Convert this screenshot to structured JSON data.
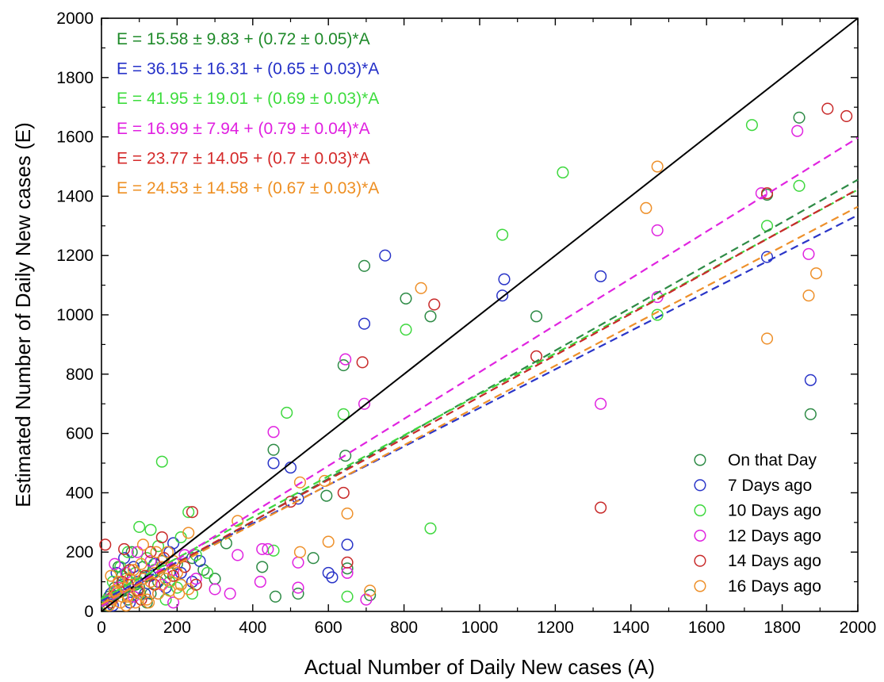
{
  "chart_data": {
    "type": "scatter",
    "xlabel": "Actual Number of Daily New cases (A)",
    "ylabel": "Estimated Number of Daily New cases (E)",
    "xlim": [
      0,
      2000
    ],
    "ylim": [
      0,
      2000
    ],
    "x_ticks": [
      "0",
      "200",
      "400",
      "600",
      "800",
      "1000",
      "1200",
      "1400",
      "1600",
      "1800",
      "2000"
    ],
    "y_ticks": [
      "0",
      "200",
      "400",
      "600",
      "800",
      "1000",
      "1200",
      "1400",
      "1600",
      "1800",
      "2000"
    ],
    "grid": false,
    "legend_position": "bottom-right",
    "identity_line": {
      "from": [
        0,
        0
      ],
      "to": [
        2000,
        2000
      ],
      "color": "#000000"
    },
    "equations": [
      {
        "text": "E = 15.58 ± 9.83 + (0.72 ± 0.05)*A",
        "color": "#1f8a2a"
      },
      {
        "text": "E = 36.15 ± 16.31 + (0.65 ± 0.03)*A",
        "color": "#2430c8"
      },
      {
        "text": "E = 41.95 ± 19.01 + (0.69 ± 0.03)*A",
        "color": "#3ddc3d"
      },
      {
        "text": "E = 16.99 ± 7.94 + (0.79 ± 0.04)*A",
        "color": "#e020e0"
      },
      {
        "text": "E = 23.77 ± 14.05 + (0.7 ± 0.03)*A",
        "color": "#d42a2a"
      },
      {
        "text": "E = 24.53 ± 14.58 + (0.67 ± 0.03)*A",
        "color": "#ee8f22"
      }
    ],
    "series": [
      {
        "name": "On that Day",
        "color": "#2e8b46",
        "fit": {
          "intercept": 15.58,
          "slope": 0.72
        },
        "points": [
          [
            1845,
            1665
          ],
          [
            1760,
            1405
          ],
          [
            1875,
            665
          ],
          [
            1150,
            995
          ],
          [
            870,
            995
          ],
          [
            805,
            1055
          ],
          [
            695,
            1165
          ],
          [
            640,
            830
          ],
          [
            645,
            525
          ],
          [
            595,
            390
          ],
          [
            455,
            545
          ],
          [
            520,
            60
          ],
          [
            460,
            50
          ],
          [
            425,
            150
          ],
          [
            560,
            180
          ],
          [
            650,
            145
          ],
          [
            710,
            55
          ],
          [
            20,
            50
          ],
          [
            35,
            80
          ],
          [
            55,
            120
          ],
          [
            70,
            40
          ],
          [
            90,
            90
          ],
          [
            110,
            150
          ],
          [
            130,
            60
          ],
          [
            150,
            100
          ],
          [
            180,
            130
          ],
          [
            210,
            90
          ],
          [
            240,
            180
          ],
          [
            270,
            140
          ],
          [
            300,
            110
          ],
          [
            330,
            230
          ],
          [
            80,
            200
          ],
          [
            120,
            30
          ],
          [
            160,
            170
          ],
          [
            60,
            70
          ],
          [
            15,
            20
          ],
          [
            45,
            150
          ],
          [
            100,
            80
          ],
          [
            200,
            160
          ]
        ]
      },
      {
        "name": "7 Days ago",
        "color": "#2a35c8",
        "fit": {
          "intercept": 36.15,
          "slope": 0.65
        },
        "points": [
          [
            750,
            1200
          ],
          [
            695,
            970
          ],
          [
            1065,
            1120
          ],
          [
            1060,
            1065
          ],
          [
            1320,
            1130
          ],
          [
            1760,
            1195
          ],
          [
            1875,
            780
          ],
          [
            500,
            485
          ],
          [
            455,
            500
          ],
          [
            650,
            225
          ],
          [
            610,
            115
          ],
          [
            600,
            130
          ],
          [
            520,
            380
          ],
          [
            190,
            230
          ],
          [
            25,
            60
          ],
          [
            40,
            130
          ],
          [
            60,
            180
          ],
          [
            75,
            30
          ],
          [
            95,
            100
          ],
          [
            115,
            60
          ],
          [
            140,
            160
          ],
          [
            170,
            80
          ],
          [
            210,
            130
          ],
          [
            240,
            100
          ],
          [
            30,
            20
          ],
          [
            55,
            90
          ],
          [
            85,
            150
          ],
          [
            130,
            120
          ],
          [
            180,
            200
          ],
          [
            260,
            170
          ]
        ]
      },
      {
        "name": "10 Days ago",
        "color": "#3fd83f",
        "fit": {
          "intercept": 41.95,
          "slope": 0.69
        },
        "points": [
          [
            1720,
            1640
          ],
          [
            1845,
            1435
          ],
          [
            1760,
            1300
          ],
          [
            1470,
            1000
          ],
          [
            1220,
            1480
          ],
          [
            1060,
            1270
          ],
          [
            805,
            950
          ],
          [
            640,
            665
          ],
          [
            490,
            670
          ],
          [
            870,
            280
          ],
          [
            650,
            50
          ],
          [
            455,
            205
          ],
          [
            160,
            505
          ],
          [
            100,
            285
          ],
          [
            130,
            275
          ],
          [
            230,
            335
          ],
          [
            30,
            100
          ],
          [
            50,
            150
          ],
          [
            70,
            200
          ],
          [
            100,
            60
          ],
          [
            120,
            180
          ],
          [
            150,
            220
          ],
          [
            180,
            100
          ],
          [
            210,
            250
          ],
          [
            250,
            190
          ],
          [
            280,
            130
          ],
          [
            15,
            40
          ],
          [
            40,
            70
          ],
          [
            65,
            110
          ],
          [
            90,
            130
          ],
          [
            140,
            140
          ],
          [
            170,
            40
          ],
          [
            200,
            80
          ],
          [
            240,
            60
          ]
        ]
      },
      {
        "name": "12 Days ago",
        "color": "#e024e0",
        "fit": {
          "intercept": 16.99,
          "slope": 0.79
        },
        "points": [
          [
            1840,
            1620
          ],
          [
            1745,
            1410
          ],
          [
            1870,
            1205
          ],
          [
            1470,
            1285
          ],
          [
            1470,
            1060
          ],
          [
            1320,
            700
          ],
          [
            695,
            700
          ],
          [
            645,
            850
          ],
          [
            455,
            605
          ],
          [
            360,
            190
          ],
          [
            425,
            210
          ],
          [
            440,
            210
          ],
          [
            520,
            165
          ],
          [
            520,
            80
          ],
          [
            420,
            100
          ],
          [
            650,
            130
          ],
          [
            700,
            40
          ],
          [
            340,
            60
          ],
          [
            300,
            75
          ],
          [
            190,
            30
          ],
          [
            20,
            40
          ],
          [
            45,
            80
          ],
          [
            65,
            130
          ],
          [
            85,
            50
          ],
          [
            110,
            110
          ],
          [
            130,
            170
          ],
          [
            160,
            90
          ],
          [
            190,
            140
          ],
          [
            220,
            190
          ],
          [
            250,
            110
          ],
          [
            35,
            160
          ],
          [
            95,
            200
          ],
          [
            150,
            60
          ]
        ]
      },
      {
        "name": "14 Days ago",
        "color": "#c82a2a",
        "fit": {
          "intercept": 23.77,
          "slope": 0.7
        },
        "points": [
          [
            1920,
            1695
          ],
          [
            1970,
            1670
          ],
          [
            1760,
            1410
          ],
          [
            880,
            1035
          ],
          [
            1150,
            860
          ],
          [
            690,
            840
          ],
          [
            640,
            400
          ],
          [
            650,
            165
          ],
          [
            1320,
            350
          ],
          [
            500,
            370
          ],
          [
            240,
            335
          ],
          [
            10,
            225
          ],
          [
            60,
            210
          ],
          [
            160,
            250
          ],
          [
            25,
            30
          ],
          [
            40,
            60
          ],
          [
            55,
            100
          ],
          [
            75,
            140
          ],
          [
            95,
            70
          ],
          [
            115,
            120
          ],
          [
            140,
            90
          ],
          [
            165,
            180
          ],
          [
            190,
            120
          ],
          [
            220,
            150
          ],
          [
            250,
            90
          ],
          [
            30,
            50
          ],
          [
            70,
            90
          ],
          [
            105,
            40
          ],
          [
            130,
            200
          ]
        ]
      },
      {
        "name": "16 Days ago",
        "color": "#ee902a",
        "fit": {
          "intercept": 24.53,
          "slope": 0.67
        },
        "points": [
          [
            1470,
            1500
          ],
          [
            1440,
            1360
          ],
          [
            1890,
            1140
          ],
          [
            1870,
            1065
          ],
          [
            1760,
            920
          ],
          [
            845,
            1090
          ],
          [
            710,
            70
          ],
          [
            650,
            330
          ],
          [
            600,
            235
          ],
          [
            590,
            440
          ],
          [
            525,
            435
          ],
          [
            525,
            200
          ],
          [
            360,
            305
          ],
          [
            230,
            265
          ],
          [
            230,
            75
          ],
          [
            110,
            225
          ],
          [
            20,
            20
          ],
          [
            30,
            40
          ],
          [
            40,
            60
          ],
          [
            50,
            30
          ],
          [
            60,
            80
          ],
          [
            70,
            50
          ],
          [
            80,
            90
          ],
          [
            90,
            30
          ],
          [
            100,
            70
          ],
          [
            110,
            110
          ],
          [
            120,
            40
          ],
          [
            130,
            100
          ],
          [
            140,
            130
          ],
          [
            150,
            60
          ],
          [
            160,
            150
          ],
          [
            170,
            110
          ],
          [
            180,
            70
          ],
          [
            190,
            170
          ],
          [
            200,
            130
          ],
          [
            210,
            90
          ],
          [
            25,
            120
          ],
          [
            45,
            100
          ],
          [
            65,
            20
          ],
          [
            85,
            140
          ],
          [
            105,
            160
          ],
          [
            125,
            30
          ],
          [
            145,
            200
          ],
          [
            175,
            200
          ],
          [
            205,
            60
          ],
          [
            35,
            70
          ],
          [
            55,
            50
          ],
          [
            75,
            110
          ]
        ]
      }
    ]
  }
}
